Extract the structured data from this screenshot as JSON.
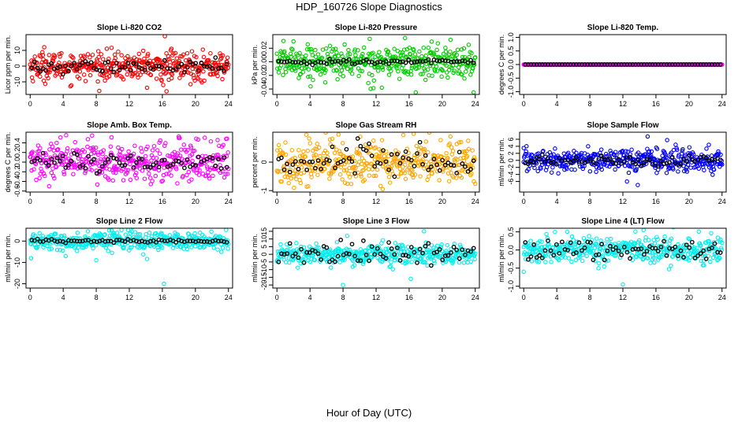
{
  "figure": {
    "title": "HDP_160726  Slope Diagnostics",
    "xlabel": "Hour of Day (UTC)"
  },
  "chart_data": [
    {
      "type": "scatter",
      "title": "Slope Li-820 CO2",
      "ylabel": "Licor ppm per min.",
      "xlim": [
        -0.5,
        24.5
      ],
      "ylim": [
        -18,
        20
      ],
      "xticks": [
        0,
        4,
        8,
        12,
        16,
        20,
        24
      ],
      "yticks": [
        -10,
        0,
        10
      ],
      "ytick_labels": [
        "-10",
        "0",
        "10"
      ],
      "grid": false,
      "color": "#ff0000",
      "ref_color": "#000000",
      "spread": 4.5,
      "ref_spread": 2.0,
      "ref_offset": -0.5,
      "outliers": [
        [
          16.3,
          19
        ],
        [
          16.5,
          -16
        ],
        [
          16.1,
          -12
        ],
        [
          15.3,
          -8
        ],
        [
          1.7,
          12
        ],
        [
          17.1,
          11
        ]
      ]
    },
    {
      "type": "scatter",
      "title": "Slope Li-820 Pressure",
      "ylabel": "kPa per min.",
      "xlim": [
        -0.5,
        24.5
      ],
      "ylim": [
        -0.048,
        0.04
      ],
      "xticks": [
        0,
        4,
        8,
        12,
        16,
        20,
        24
      ],
      "yticks": [
        -0.04,
        -0.02,
        0,
        0.02
      ],
      "ytick_labels": [
        "-0.04",
        "-0.02",
        "0.00",
        "0.02"
      ],
      "grid": false,
      "color": "#00cc00",
      "ref_color": "#000000",
      "spread": 0.012,
      "ref_spread": 0.002,
      "ref_offset": 0,
      "outliers": [
        [
          15.5,
          0.035
        ],
        [
          16.8,
          -0.045
        ],
        [
          23.8,
          -0.045
        ],
        [
          12.7,
          -0.038
        ],
        [
          2.0,
          0.03
        ]
      ]
    },
    {
      "type": "scatter",
      "title": "Slope Li-820 Temp.",
      "ylabel": "degrees C per min.",
      "xlim": [
        -0.5,
        24.5
      ],
      "ylim": [
        -1.1,
        1.1
      ],
      "xticks": [
        0,
        4,
        8,
        12,
        16,
        20,
        24
      ],
      "yticks": [
        -1,
        -0.5,
        0,
        0.5,
        1
      ],
      "ytick_labels": [
        "-1.0",
        "-0.5",
        "0.0",
        "0.5",
        "1.0"
      ],
      "grid": false,
      "color": "#ff00ff",
      "ref_color": "#000000",
      "spread": 0.0,
      "ref_spread": 0.0,
      "ref_offset": 0,
      "outliers": []
    },
    {
      "type": "scatter",
      "title": "Slope Amb. Box Temp.",
      "ylabel": "degrees C per min.",
      "xlim": [
        -0.5,
        24.5
      ],
      "ylim": [
        -0.62,
        0.62
      ],
      "xticks": [
        0,
        4,
        8,
        12,
        16,
        20,
        24
      ],
      "yticks": [
        -0.6,
        -0.4,
        -0.2,
        0,
        0.2,
        0.4
      ],
      "ytick_labels": [
        "-0.6",
        "-0.4",
        "-0.2",
        "0.0",
        "0.2",
        "0.4"
      ],
      "grid": false,
      "color": "#ff00ff",
      "ref_color": "#000000",
      "spread": 0.2,
      "ref_spread": 0.1,
      "ref_offset": 0,
      "outliers": [
        [
          7.5,
          0.55
        ],
        [
          2.3,
          -0.5
        ],
        [
          18.0,
          0.5
        ]
      ]
    },
    {
      "type": "scatter",
      "title": "Slope Gas Stream RH",
      "ylabel": "percent per min.",
      "xlim": [
        -0.5,
        24.5
      ],
      "ylim": [
        -1.05,
        1.05
      ],
      "xticks": [
        0,
        4,
        8,
        12,
        16,
        20,
        24
      ],
      "yticks": [
        -1,
        0
      ],
      "ytick_labels": [
        "-1",
        "0"
      ],
      "grid": false,
      "color": "#ffa500",
      "ref_color": "#000000",
      "spread": 0.4,
      "ref_spread": 0.3,
      "ref_offset": 0,
      "outliers": [
        [
          12.8,
          -0.95
        ],
        [
          15.3,
          0.95
        ],
        [
          21.0,
          0.9
        ]
      ]
    },
    {
      "type": "scatter",
      "title": "Slope Sample Flow",
      "ylabel": "ml/min per min.",
      "xlim": [
        -0.5,
        24.5
      ],
      "ylim": [
        -9,
        8
      ],
      "xticks": [
        0,
        4,
        8,
        12,
        16,
        20,
        24
      ],
      "yticks": [
        -6,
        -4,
        -2,
        0,
        2,
        4,
        6
      ],
      "ytick_labels": [
        "-6",
        "-4",
        "-2",
        "0",
        "2",
        "4",
        "6"
      ],
      "grid": false,
      "color": "#0000ff",
      "ref_color": "#000000",
      "spread": 1.6,
      "ref_spread": 0.8,
      "ref_offset": 0,
      "outliers": [
        [
          15.0,
          6.8
        ],
        [
          13.8,
          -7
        ],
        [
          12.5,
          -6
        ],
        [
          0.0,
          3.5
        ]
      ]
    },
    {
      "type": "scatter",
      "title": "Slope Line 2 Flow",
      "ylabel": "ml/min per min.",
      "xlim": [
        -0.5,
        24.5
      ],
      "ylim": [
        -22,
        6
      ],
      "xticks": [
        0,
        4,
        8,
        12,
        16,
        20,
        24
      ],
      "yticks": [
        -20,
        -10,
        0
      ],
      "ytick_labels": [
        "-20",
        "-10",
        "0"
      ],
      "grid": false,
      "color": "#00eeee",
      "ref_color": "#000000",
      "spread": 2.0,
      "ref_spread": 0.4,
      "ref_offset": 0,
      "outliers": [
        [
          16.2,
          -20
        ],
        [
          8.0,
          -9
        ],
        [
          4.3,
          -7
        ],
        [
          0.1,
          -8
        ]
      ]
    },
    {
      "type": "scatter",
      "title": "Slope Line 3 Flow",
      "ylabel": "ml/min per min.",
      "xlim": [
        -0.5,
        24.5
      ],
      "ylim": [
        -22,
        17
      ],
      "xticks": [
        0,
        4,
        8,
        12,
        16,
        20,
        24
      ],
      "yticks": [
        -20,
        -15,
        -10,
        -5,
        0,
        5,
        10,
        15
      ],
      "ytick_labels": [
        "-20",
        "-15",
        "-10",
        "-5",
        "0",
        "5",
        "10",
        "15"
      ],
      "grid": false,
      "color": "#00eeee",
      "ref_color": "#000000",
      "spread": 3.2,
      "ref_spread": 3.5,
      "ref_offset": 0,
      "outliers": [
        [
          8.0,
          -20
        ],
        [
          16.2,
          -16
        ],
        [
          17.8,
          15
        ],
        [
          8.5,
          12
        ]
      ]
    },
    {
      "type": "scatter",
      "title": "Slope Line 4 (LT) Flow",
      "ylabel": "ml/min per min.",
      "xlim": [
        -0.5,
        24.5
      ],
      "ylim": [
        -1.05,
        0.6
      ],
      "xticks": [
        0,
        4,
        8,
        12,
        16,
        20,
        24
      ],
      "yticks": [
        -1,
        -0.5,
        0,
        0.5
      ],
      "ytick_labels": [
        "-1.0",
        "-0.5",
        "0.0",
        "0.5"
      ],
      "grid": false,
      "color": "#00eeee",
      "ref_color": "#000000",
      "spread": 0.18,
      "ref_spread": 0.15,
      "ref_offset": 0,
      "outliers": [
        [
          12.0,
          -0.95
        ],
        [
          14.5,
          0.55
        ],
        [
          0.0,
          -0.6
        ]
      ]
    }
  ]
}
